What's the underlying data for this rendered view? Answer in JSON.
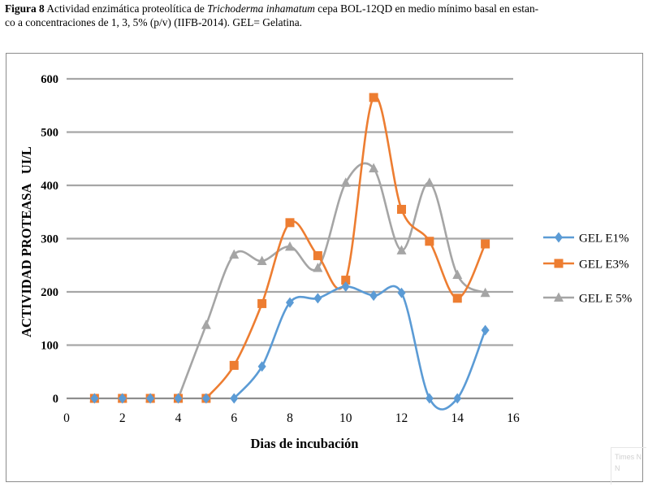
{
  "caption": {
    "label": "Figura 8",
    "text_before": " Actividad enzimática proteolítica de ",
    "species": "Trichoderma inhamatum",
    "text_after": " cepa BOL-12QD en medio mínimo basal en estan-",
    "line2": "co a concentraciones de 1, 3, 5% (p/v) (IIFB-2014). GEL= Gelatina."
  },
  "ghost": {
    "text1": "Times N",
    "text2": "N"
  },
  "chart_data": {
    "type": "line",
    "title": "",
    "xlabel": "Dias de incubación",
    "ylabel": "ACTIVIDAD PROTEASA   UI/L",
    "xlim": [
      0,
      16
    ],
    "ylim": [
      0,
      600
    ],
    "x_ticks": [
      0,
      2,
      4,
      6,
      8,
      10,
      12,
      14,
      16
    ],
    "y_ticks": [
      0,
      100,
      200,
      300,
      400,
      500,
      600
    ],
    "grid": "horizontal",
    "legend_position": "right",
    "smooth": true,
    "x": [
      1,
      2,
      3,
      4,
      5,
      6,
      7,
      8,
      9,
      10,
      11,
      12,
      13,
      14,
      15
    ],
    "series": [
      {
        "name": "GEL E1%",
        "color": "#5b9bd5",
        "marker": "diamond",
        "values": [
          0,
          0,
          0,
          0,
          0,
          0,
          60,
          180,
          188,
          210,
          193,
          198,
          0,
          0,
          128
        ]
      },
      {
        "name": "GEL E3%",
        "color": "#ed7d31",
        "marker": "square",
        "values": [
          0,
          0,
          0,
          0,
          0,
          62,
          178,
          330,
          268,
          222,
          565,
          355,
          295,
          188,
          290
        ]
      },
      {
        "name": "GEL E 5%",
        "color": "#a5a5a5",
        "marker": "triangle",
        "values": [
          0,
          0,
          0,
          0,
          138,
          270,
          258,
          285,
          245,
          405,
          432,
          278,
          405,
          232,
          198
        ]
      }
    ]
  }
}
